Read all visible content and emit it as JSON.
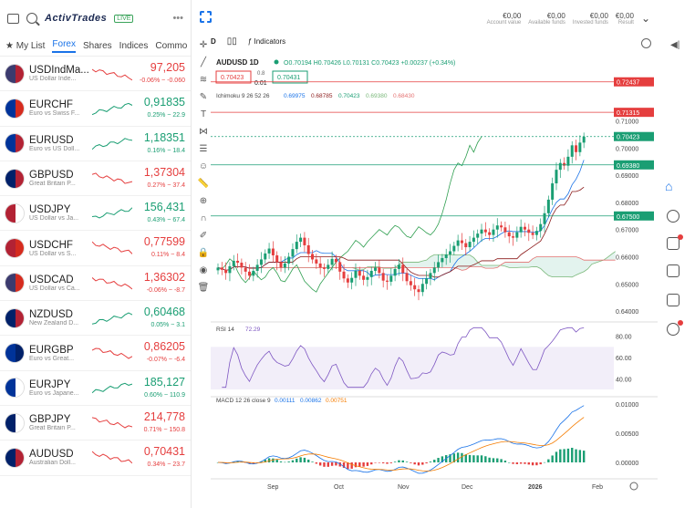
{
  "header": {
    "logo": "ActivTrades",
    "live": "LIVE",
    "more": "•••"
  },
  "tabs": [
    "My List",
    "Forex",
    "Shares",
    "Indices",
    "Commo"
  ],
  "watchlist": [
    {
      "symbol": "USDIndMa...",
      "desc": "US Dollar Inde...",
      "price": "97,205",
      "change": "-0.06% ~ -0.060",
      "dir": "down",
      "flags": [
        "#3c3b6e",
        "#b22234"
      ]
    },
    {
      "symbol": "EURCHF",
      "desc": "Euro vs Swiss F...",
      "price": "0,91835",
      "change": "0.25% ~ 22.9",
      "dir": "up",
      "flags": [
        "#003399",
        "#d52b1e"
      ]
    },
    {
      "symbol": "EURUSD",
      "desc": "Euro vs US Doll...",
      "price": "1,18351",
      "change": "0.16% ~ 18.4",
      "dir": "up",
      "flags": [
        "#003399",
        "#b22234"
      ]
    },
    {
      "symbol": "GBPUSD",
      "desc": "Great Britain P...",
      "price": "1,37304",
      "change": "0.27% ~ 37.4",
      "dir": "down",
      "flags": [
        "#012169",
        "#b22234"
      ]
    },
    {
      "symbol": "USDJPY",
      "desc": "US Dollar vs Ja...",
      "price": "156,431",
      "change": "0.43% ~ 67.4",
      "dir": "up",
      "flags": [
        "#b22234",
        "#ffffff"
      ]
    },
    {
      "symbol": "USDCHF",
      "desc": "US Dollar vs S...",
      "price": "0,77599",
      "change": "0.11% ~ 8.4",
      "dir": "down",
      "flags": [
        "#b22234",
        "#d52b1e"
      ]
    },
    {
      "symbol": "USDCAD",
      "desc": "US Dollar vs Ca...",
      "price": "1,36302",
      "change": "-0.06% ~ -8.7",
      "dir": "down",
      "flags": [
        "#3c3b6e",
        "#d52b1e"
      ]
    },
    {
      "symbol": "NZDUSD",
      "desc": "New Zealand D...",
      "price": "0,60468",
      "change": "0.05% ~ 3.1",
      "dir": "up",
      "flags": [
        "#012169",
        "#b22234"
      ]
    },
    {
      "symbol": "EURGBP",
      "desc": "Euro vs Great...",
      "price": "0,86205",
      "change": "-0.07% ~ -6.4",
      "dir": "down",
      "flags": [
        "#003399",
        "#012169"
      ]
    },
    {
      "symbol": "EURJPY",
      "desc": "Euro vs Japane...",
      "price": "185,127",
      "change": "0.60% ~ 110.9",
      "dir": "up",
      "flags": [
        "#003399",
        "#ffffff"
      ]
    },
    {
      "symbol": "GBPJPY",
      "desc": "Great Britain P...",
      "price": "214,778",
      "change": "0.71% ~ 150.8",
      "dir": "down",
      "flags": [
        "#012169",
        "#ffffff"
      ]
    },
    {
      "symbol": "AUDUSD",
      "desc": "Australian Doll...",
      "price": "0,70431",
      "change": "0.34% ~ 23.7",
      "dir": "down",
      "flags": [
        "#012169",
        "#b22234"
      ]
    }
  ],
  "account": [
    {
      "value": "€0,00",
      "label": "Account value"
    },
    {
      "value": "€0,00",
      "label": "Available funds"
    },
    {
      "value": "€0,00",
      "label": "Invested funds"
    },
    {
      "value": "€0,00",
      "label": "Result"
    }
  ],
  "toolbar": {
    "interval": "D",
    "indicators": "Indicators"
  },
  "legend": {
    "symbol": "AUDUSD",
    "tf": "1D",
    "ohlc": "O0.70194  H0.70426  L0.70131  C0.70423  +0.00237 (+0.34%)",
    "sell": "0.70423",
    "spread": "0.8",
    "qty": "0.01",
    "buy": "0.70431",
    "ichimoku_label": "Ichimoku  9 26 52 26",
    "ichimoku_values": [
      "0.69975",
      "0.68785",
      "0.70423",
      "0.69380",
      "0.68430"
    ],
    "rsi_label": "RSI  14",
    "rsi_value": "72.29",
    "macd_label": "MACD  12 26 close 9",
    "macd_values": [
      "0.00111",
      "0.00862",
      "0.00751"
    ]
  },
  "price_axis": [
    "0.71000",
    "0.70000",
    "0.69000",
    "0.68000",
    "0.67000",
    "0.66000",
    "0.65000",
    "0.64000"
  ],
  "price_tags": [
    {
      "value": "0.72437",
      "color": "#e53e3e"
    },
    {
      "value": "0.71315",
      "color": "#e53e3e"
    },
    {
      "value": "0.70423",
      "color": "#1a9e73"
    },
    {
      "value": "0.69380",
      "color": "#1a9e73"
    },
    {
      "value": "0.67500",
      "color": "#1a9e73"
    }
  ],
  "rsi_axis": [
    "80.00",
    "60.00",
    "40.00"
  ],
  "macd_axis": [
    "0.01000",
    "0.00500",
    "0.00000"
  ],
  "x_axis": [
    "Sep",
    "Oct",
    "Nov",
    "Dec",
    "2026",
    "Feb"
  ],
  "colors": {
    "up": "#1a9e73",
    "down": "#e53e3e",
    "accent": "#1a73e8"
  },
  "chart_data": {
    "type": "candlestick",
    "symbol": "AUDUSD",
    "title": "AUDUSD 1D",
    "x_labels": [
      "Sep",
      "Oct",
      "Nov",
      "Dec",
      "2026",
      "Feb"
    ],
    "ylim": [
      0.638,
      0.732
    ],
    "close": [
      0.656,
      0.6552,
      0.654,
      0.6565,
      0.6585,
      0.6578,
      0.656,
      0.6545,
      0.653,
      0.6548,
      0.657,
      0.659,
      0.6612,
      0.663,
      0.6605,
      0.658,
      0.656,
      0.6575,
      0.66,
      0.6628,
      0.6655,
      0.667,
      0.6642,
      0.661,
      0.659,
      0.6575,
      0.656,
      0.6555,
      0.657,
      0.6592,
      0.658,
      0.6545,
      0.652,
      0.6505,
      0.6522,
      0.6548,
      0.653,
      0.6515,
      0.6525,
      0.6548,
      0.656,
      0.654,
      0.6512,
      0.6508,
      0.653,
      0.6555,
      0.657,
      0.654,
      0.651,
      0.6495,
      0.648,
      0.647,
      0.65,
      0.652,
      0.654,
      0.656,
      0.658,
      0.6595,
      0.6608,
      0.662,
      0.664,
      0.666,
      0.665,
      0.6635,
      0.6655,
      0.667,
      0.6685,
      0.67,
      0.669,
      0.668,
      0.67,
      0.6715,
      0.6708,
      0.669,
      0.6675,
      0.667,
      0.669,
      0.671,
      0.67,
      0.6688,
      0.668,
      0.6695,
      0.672,
      0.676,
      0.681,
      0.687,
      0.692,
      0.6945,
      0.6935,
      0.6968,
      0.701,
      0.6985,
      0.702,
      0.7042
    ]
  }
}
